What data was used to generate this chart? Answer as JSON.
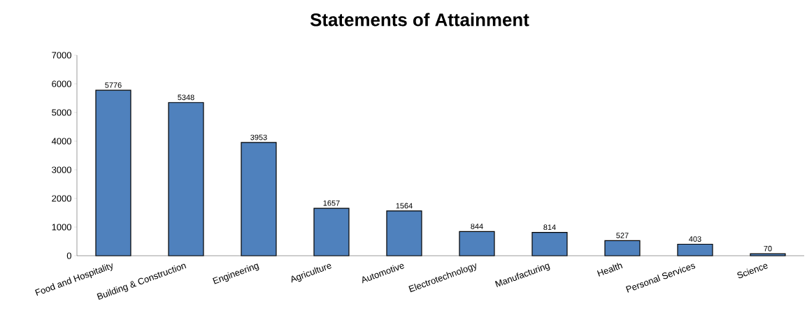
{
  "chart_data": {
    "type": "bar",
    "title": "Statements of Attainment",
    "categories": [
      "Food and Hospitality",
      "Building & Construction",
      "Engineering",
      "Agriculture",
      "Automotive",
      "Electrotechnology",
      "Manufacturing",
      "Health",
      "Personal Services",
      "Science"
    ],
    "values": [
      5776,
      5348,
      3953,
      1657,
      1564,
      844,
      814,
      527,
      403,
      70
    ],
    "color": "#4f81bd",
    "ylim": [
      0,
      7000
    ],
    "yticks": [
      0,
      1000,
      2000,
      3000,
      4000,
      5000,
      6000,
      7000
    ],
    "data_labels": true,
    "grid": false
  }
}
